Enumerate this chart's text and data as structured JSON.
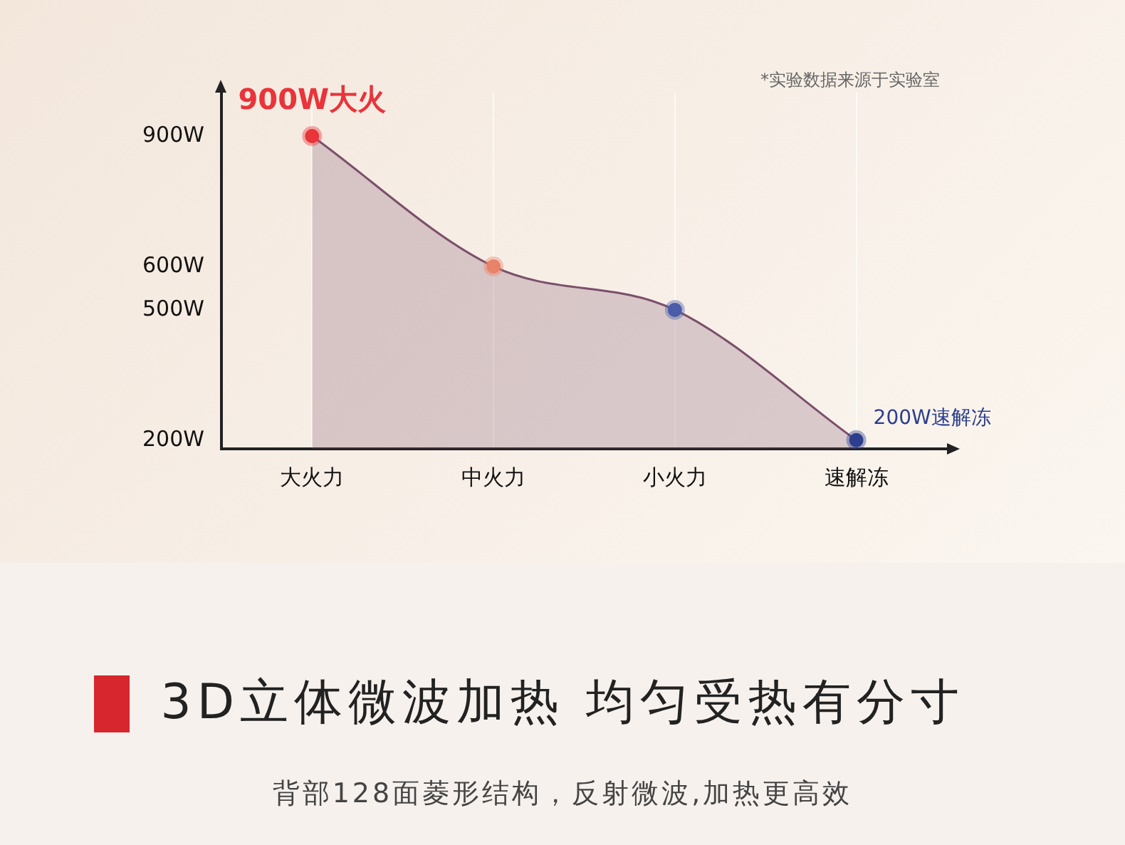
{
  "chart_data": {
    "type": "area",
    "title": "3D立体微波加热 均匀受热有分寸",
    "subtitle": "背部128面菱形结构，反射微波,加热更高效",
    "categories": [
      "大火力",
      "中火力",
      "小火力",
      "速解冻"
    ],
    "series": [
      {
        "color": "#7b4f6b",
        "values": [
          900,
          600,
          500,
          200
        ],
        "colors": [
          "#e8343a",
          "#e9826a",
          "#4a5da8",
          "#2d3f8c"
        ]
      }
    ],
    "ylim": [
      180,
      1000
    ],
    "yticks": [
      {
        "value": 200,
        "label": "200W"
      },
      {
        "value": 500,
        "label": "500W"
      },
      {
        "value": 600,
        "label": "600W"
      },
      {
        "value": 900,
        "label": "900W"
      }
    ],
    "grid": "x",
    "legend": false,
    "marker": "circle",
    "annotations": [
      "*实验数据来源于实验室",
      {
        "text": "900W大火",
        "x": "大火力",
        "y": 900
      },
      {
        "text": "200W速解冻",
        "x": "速解冻",
        "y": 200
      }
    ]
  }
}
